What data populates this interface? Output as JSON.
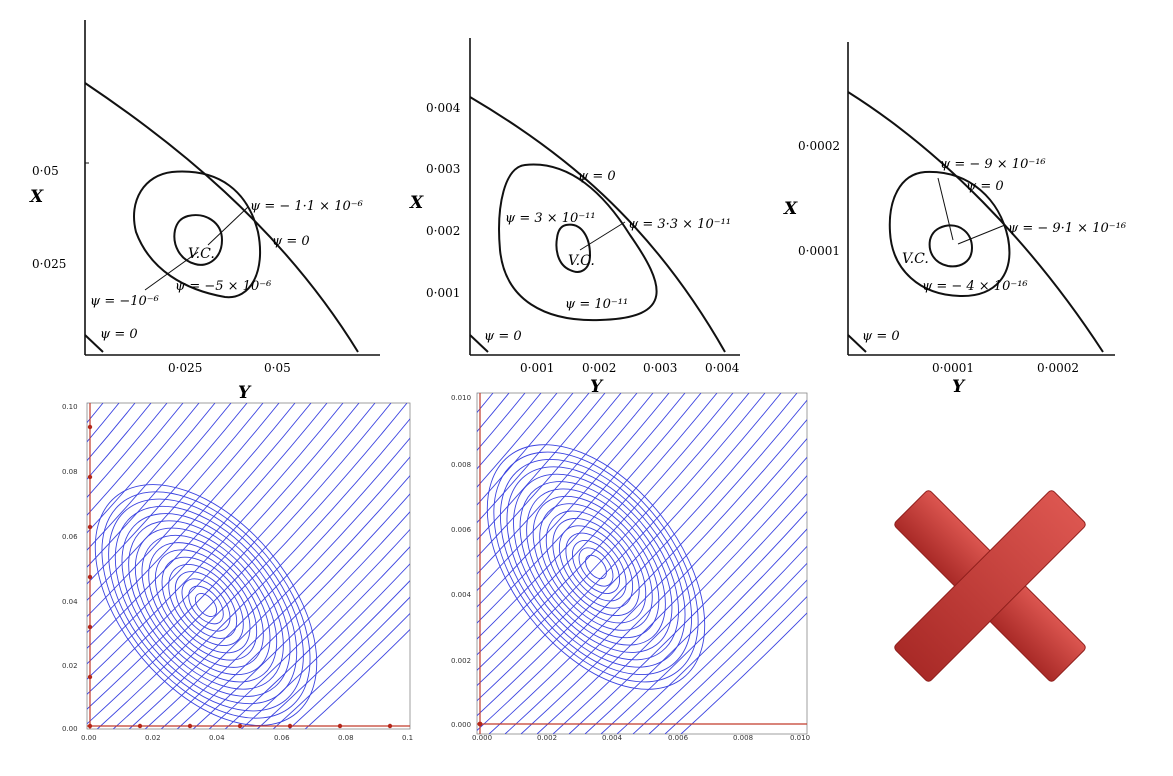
{
  "top_panels": [
    {
      "x_axis_label": "Y",
      "y_axis_label": "X",
      "x_ticks": [
        "0·025",
        "0·05"
      ],
      "y_ticks": [
        "0·05",
        "0·025"
      ],
      "annotations": {
        "outer": "ψ = − 1·1 × 10⁻⁶",
        "boundary": "ψ = 0",
        "inner": "ψ = −5 × 10⁻⁶",
        "left": "ψ = −10⁻⁶",
        "corner": "ψ = 0",
        "vortex": "V.C."
      }
    },
    {
      "x_axis_label": "Y",
      "y_axis_label": "X",
      "x_ticks": [
        "0·001",
        "0·002",
        "0·003",
        "0·004"
      ],
      "y_ticks": [
        "0·004",
        "0·003",
        "0·002",
        "0·001"
      ],
      "annotations": {
        "boundary": "ψ = 0",
        "left": "ψ = 3 × 10⁻¹¹",
        "right": "ψ = 3·3 × 10⁻¹¹",
        "bottom": "ψ = 10⁻¹¹",
        "corner": "ψ = 0",
        "vortex": "V.C."
      }
    },
    {
      "x_axis_label": "Y",
      "y_axis_label": "X",
      "x_ticks": [
        "0·0001",
        "0·0002"
      ],
      "y_ticks": [
        "0·0002",
        "0·0001"
      ],
      "annotations": {
        "top": "ψ = − 9 × 10⁻¹⁶",
        "boundary": "ψ = 0",
        "right": "ψ = − 9·1 × 10⁻¹⁶",
        "bottom": "ψ = − 4 × 10⁻¹⁶",
        "corner": "ψ = 0",
        "vortex": "V.C."
      }
    }
  ],
  "bottom_panels": [
    {
      "x_ticks": [
        "0.00",
        "0.02",
        "0.04",
        "0.06",
        "0.08",
        "0.1"
      ],
      "y_ticks": [
        "0.10",
        "0.08",
        "0.06",
        "0.04",
        "0.02",
        "0.00"
      ],
      "vortex_center": [
        0.037,
        0.038
      ]
    },
    {
      "x_ticks": [
        "0.000",
        "0.002",
        "0.004",
        "0.006",
        "0.008",
        "0.010"
      ],
      "y_ticks": [
        "0.010",
        "0.008",
        "0.006",
        "0.004",
        "0.002",
        "0.000"
      ],
      "vortex_center": [
        0.0036,
        0.0049
      ]
    }
  ],
  "cross_mark": {
    "icon": "red-x-icon",
    "color": "#c9413b"
  }
}
